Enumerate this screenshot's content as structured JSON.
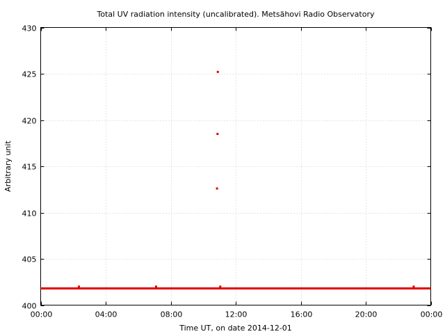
{
  "chart_data": {
    "type": "scatter",
    "title": "Total UV radiation intensity (uncalibrated). Metsähovi Radio Observatory",
    "xlabel": "Time UT, on date 2014-12-01",
    "ylabel": "Arbitrary unit",
    "xlim": [
      0,
      24
    ],
    "ylim": [
      400,
      430
    ],
    "x_ticks": [
      {
        "value": 0,
        "label": "00:00"
      },
      {
        "value": 4,
        "label": "04:00"
      },
      {
        "value": 8,
        "label": "08:00"
      },
      {
        "value": 12,
        "label": "12:00"
      },
      {
        "value": 16,
        "label": "16:00"
      },
      {
        "value": 20,
        "label": "20:00"
      },
      {
        "value": 24,
        "label": "00:00"
      }
    ],
    "y_ticks": [
      {
        "value": 400,
        "label": "400"
      },
      {
        "value": 405,
        "label": "405"
      },
      {
        "value": 410,
        "label": "410"
      },
      {
        "value": 415,
        "label": "415"
      },
      {
        "value": 420,
        "label": "420"
      },
      {
        "value": 425,
        "label": "425"
      },
      {
        "value": 430,
        "label": "430"
      }
    ],
    "grid": true,
    "series": [
      {
        "color": "#e00000",
        "baseline": {
          "x": [
            0,
            24
          ],
          "y": 401.8
        },
        "points": [
          {
            "x": 2.35,
            "y": 402.0
          },
          {
            "x": 7.1,
            "y": 402.0
          },
          {
            "x": 10.85,
            "y": 412.6
          },
          {
            "x": 10.88,
            "y": 418.5
          },
          {
            "x": 10.9,
            "y": 425.2
          },
          {
            "x": 11.05,
            "y": 402.0
          },
          {
            "x": 22.95,
            "y": 402.0
          }
        ]
      }
    ]
  }
}
